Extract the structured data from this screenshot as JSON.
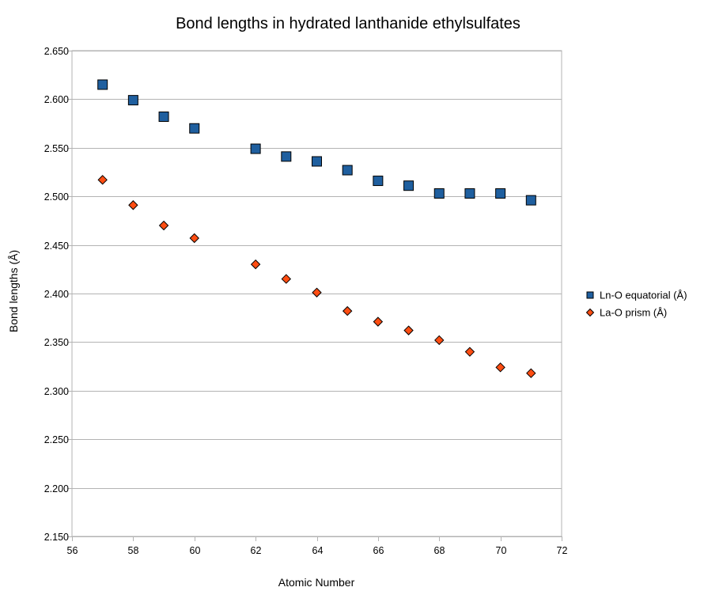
{
  "chart_data": {
    "type": "scatter",
    "title": "Bond lengths in hydrated lanthanide ethylsulfates",
    "xlabel": "Atomic Number",
    "ylabel": "Bond lengths (Å)",
    "xlim": [
      56,
      72
    ],
    "ylim": [
      2.15,
      2.65
    ],
    "x_ticks": [
      56,
      58,
      60,
      62,
      64,
      66,
      68,
      70,
      72
    ],
    "x_tick_labels": [
      "56",
      "58",
      "60",
      "62",
      "64",
      "66",
      "68",
      "70",
      "72"
    ],
    "y_ticks": [
      2.15,
      2.2,
      2.25,
      2.3,
      2.35,
      2.4,
      2.45,
      2.5,
      2.55,
      2.6,
      2.65
    ],
    "y_tick_labels": [
      "2.150",
      "2.200",
      "2.250",
      "2.300",
      "2.350",
      "2.400",
      "2.450",
      "2.500",
      "2.550",
      "2.600",
      "2.650"
    ],
    "grid": "horizontal",
    "legend_position": "right",
    "series": [
      {
        "name": "Ln-O equatorial (Å)",
        "marker": "square",
        "color": "#1f5f9f",
        "x": [
          57,
          58,
          59,
          60,
          62,
          63,
          64,
          65,
          66,
          67,
          68,
          69,
          70,
          71
        ],
        "y": [
          2.615,
          2.599,
          2.582,
          2.57,
          2.549,
          2.541,
          2.536,
          2.527,
          2.516,
          2.511,
          2.503,
          2.503,
          2.503,
          2.496
        ]
      },
      {
        "name": "La-O prism (Å)",
        "marker": "diamond",
        "color": "#ff4d12",
        "x": [
          57,
          58,
          59,
          60,
          62,
          63,
          64,
          65,
          66,
          67,
          68,
          69,
          70,
          71
        ],
        "y": [
          2.517,
          2.491,
          2.47,
          2.457,
          2.43,
          2.415,
          2.401,
          2.382,
          2.371,
          2.362,
          2.352,
          2.34,
          2.324,
          2.318
        ]
      }
    ]
  }
}
